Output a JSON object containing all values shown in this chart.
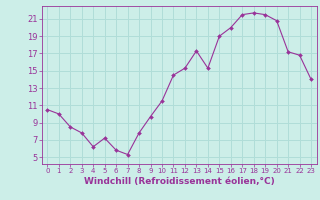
{
  "x": [
    0,
    1,
    2,
    3,
    4,
    5,
    6,
    7,
    8,
    9,
    10,
    11,
    12,
    13,
    14,
    15,
    16,
    17,
    18,
    19,
    20,
    21,
    22,
    23
  ],
  "y": [
    10.5,
    10.0,
    8.5,
    7.8,
    6.2,
    7.2,
    5.8,
    5.3,
    7.8,
    9.7,
    11.5,
    14.5,
    15.3,
    17.3,
    15.3,
    19.0,
    20.0,
    21.5,
    21.7,
    21.5,
    20.8,
    17.2,
    16.8,
    14.0
  ],
  "line_color": "#993399",
  "marker": "D",
  "marker_size": 2.0,
  "bg_color": "#cceee8",
  "grid_color": "#b0ddd8",
  "tick_color": "#993399",
  "xlabel": "Windchill (Refroidissement éolien,°C)",
  "xlabel_fontsize": 6.5,
  "ylabel_ticks": [
    5,
    7,
    9,
    11,
    13,
    15,
    17,
    19,
    21
  ],
  "ylim": [
    4.2,
    22.5
  ],
  "xlim": [
    -0.5,
    23.5
  ],
  "tick_fontsize": 6.0
}
